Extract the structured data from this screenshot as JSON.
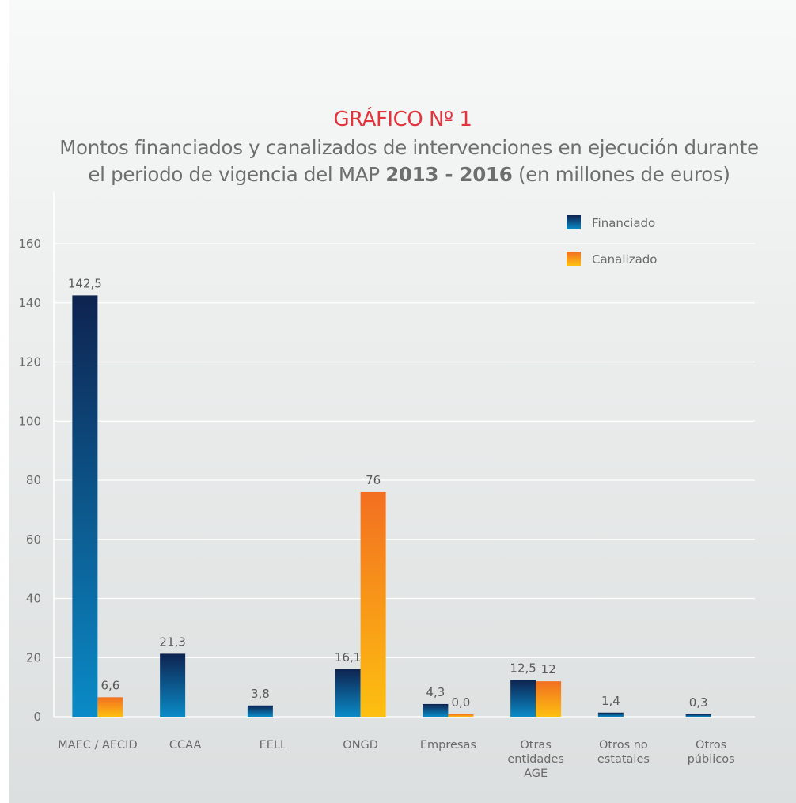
{
  "chart_data": {
    "type": "bar",
    "title": "GRÁFICO Nº 1",
    "subtitle_parts": [
      "Montos financiados y canalizados de intervenciones en ejecución durante el periodo de vigencia del MAP ",
      "2013 - 2016",
      " (en millones de euros)"
    ],
    "categories": [
      [
        "MAEC / AECID"
      ],
      [
        "CCAA"
      ],
      [
        "EELL"
      ],
      [
        "ONGD"
      ],
      [
        "Empresas"
      ],
      [
        "Otras",
        "entidades",
        "AGE"
      ],
      [
        "Otros no",
        "estatales"
      ],
      [
        "Otros",
        "públicos"
      ]
    ],
    "series": [
      {
        "name": "Financiado",
        "values": [
          142.5,
          21.3,
          3.8,
          16.1,
          4.3,
          12.5,
          1.4,
          0.3
        ],
        "labels": [
          "142,5",
          "21,3",
          "3,8",
          "16,1",
          "4,3",
          "12,5",
          "1,4",
          "0,3"
        ],
        "colors": [
          "#0e2350",
          "#0a8bc7"
        ]
      },
      {
        "name": "Canalizado",
        "values": [
          6.6,
          null,
          null,
          76,
          0.0,
          12,
          null,
          null
        ],
        "labels": [
          "6,6",
          "",
          "",
          "76",
          "0,0",
          "12",
          "",
          ""
        ],
        "colors": [
          "#f26f21",
          "#fdc010"
        ]
      }
    ],
    "ylim": [
      0,
      160
    ],
    "yticks": [
      0,
      20,
      40,
      60,
      80,
      100,
      120,
      140,
      160
    ],
    "grid": true,
    "legend": "top-right"
  }
}
